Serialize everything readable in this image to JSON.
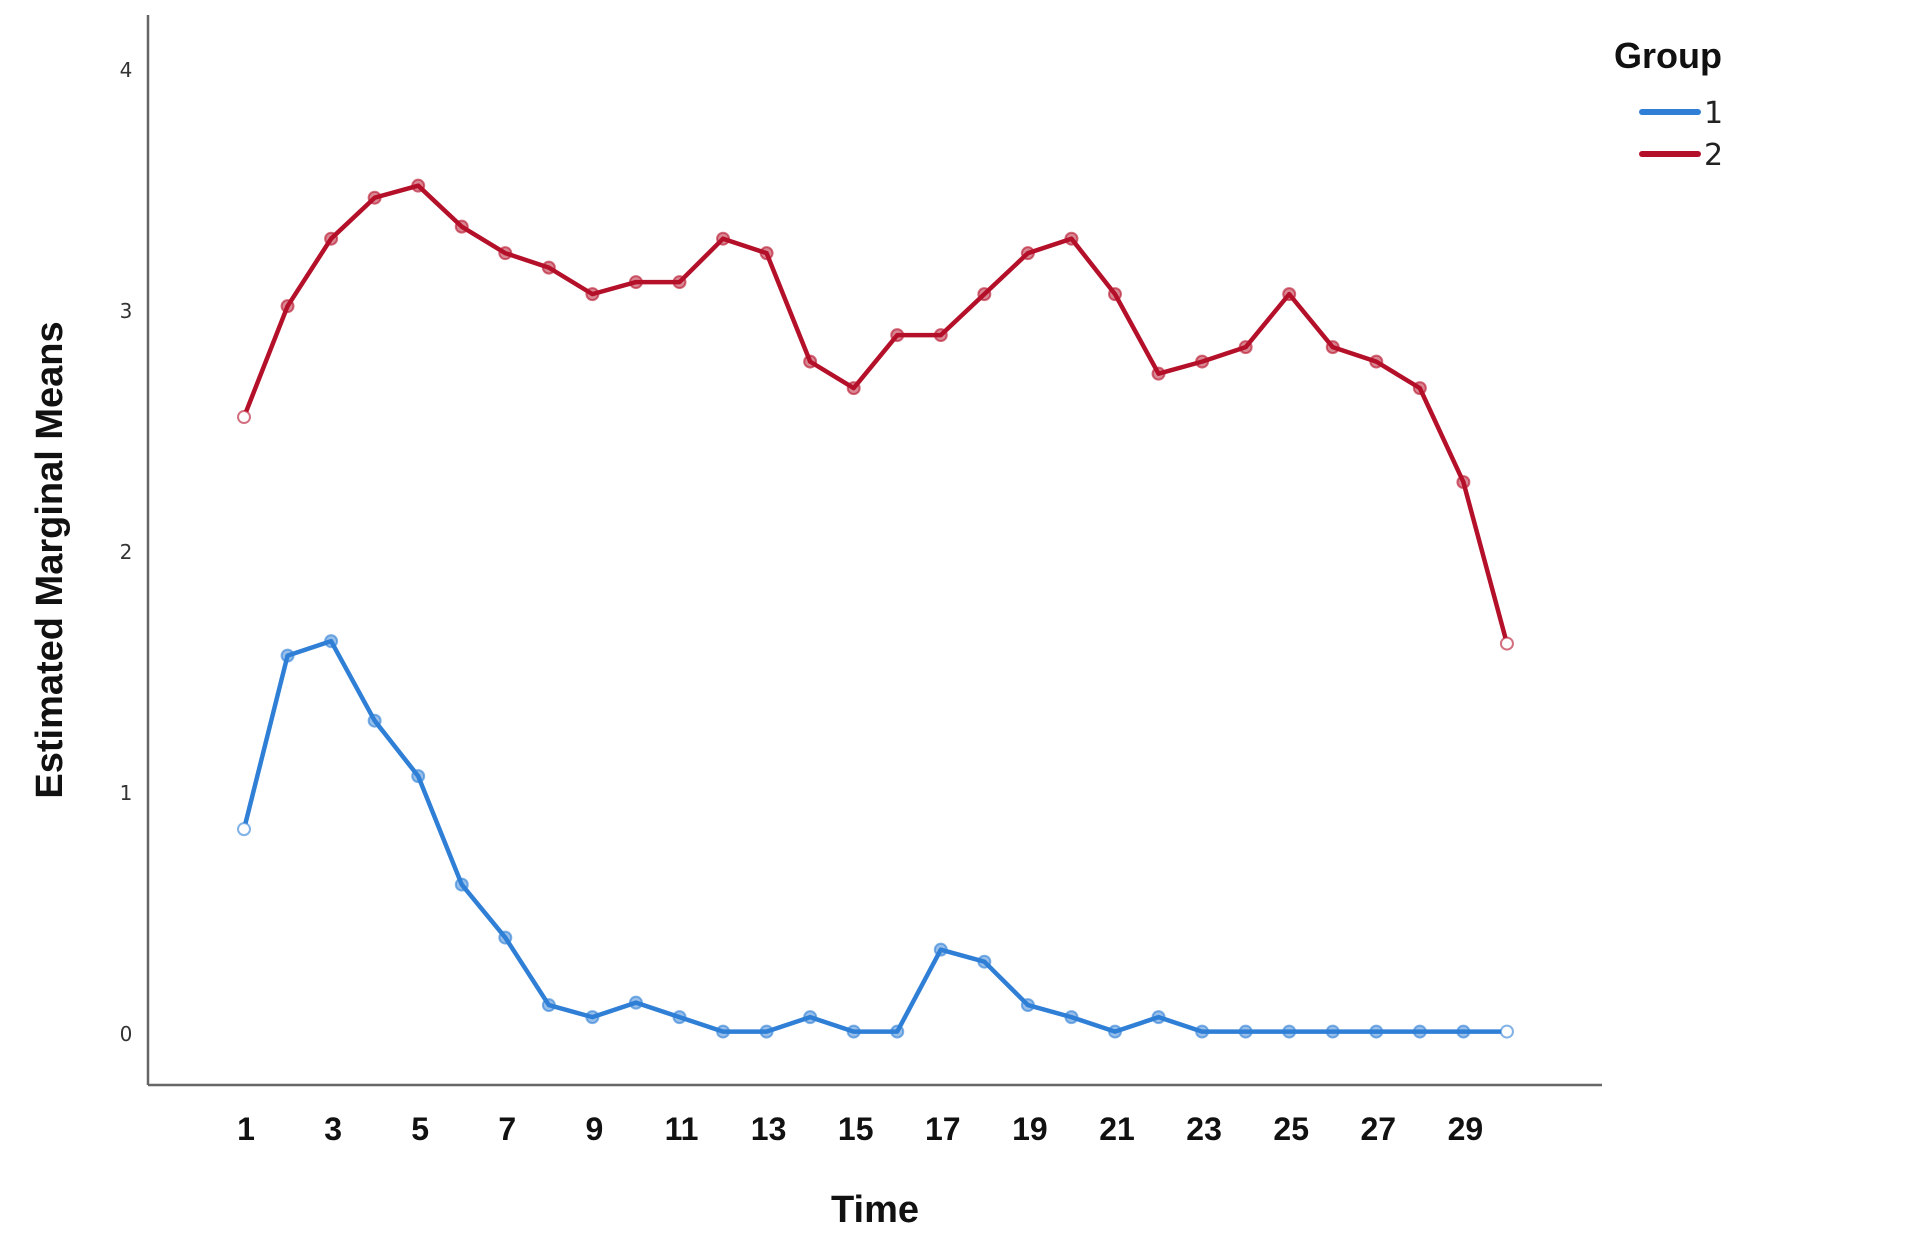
{
  "chart_data": {
    "type": "line",
    "title": "",
    "xlabel": "Time",
    "ylabel": "Estimated Marginal Means",
    "x": [
      1,
      2,
      3,
      4,
      5,
      6,
      7,
      8,
      9,
      10,
      11,
      12,
      13,
      14,
      15,
      16,
      17,
      18,
      19,
      20,
      21,
      22,
      23,
      24,
      25,
      26,
      27,
      28,
      29,
      30
    ],
    "x_tick_labels": [
      "1",
      "3",
      "5",
      "7",
      "9",
      "11",
      "13",
      "15",
      "17",
      "19",
      "21",
      "23",
      "25",
      "27",
      "29"
    ],
    "y_tick_labels": [
      "0",
      "1",
      "2",
      "3",
      "4"
    ],
    "ylim": [
      -0.2,
      4.2
    ],
    "grid": false,
    "legend": {
      "title": "Group",
      "placement": "top-right"
    },
    "series": [
      {
        "name": "1",
        "color": "#2f7fd6",
        "values": [
          0.85,
          1.57,
          1.63,
          1.3,
          1.07,
          0.62,
          0.4,
          0.12,
          0.07,
          0.13,
          0.07,
          0.01,
          0.01,
          0.07,
          0.01,
          0.01,
          0.35,
          0.3,
          0.12,
          0.07,
          0.01,
          0.07,
          0.01,
          0.01,
          0.01,
          0.01,
          0.01,
          0.01,
          0.01,
          0.01
        ]
      },
      {
        "name": "2",
        "color": "#b5102a",
        "values": [
          2.56,
          3.02,
          3.3,
          3.47,
          3.52,
          3.35,
          3.24,
          3.18,
          3.07,
          3.12,
          3.12,
          3.3,
          3.24,
          2.79,
          2.68,
          2.9,
          2.9,
          3.07,
          3.24,
          3.3,
          3.07,
          2.74,
          2.79,
          2.85,
          3.07,
          2.85,
          2.79,
          2.68,
          2.29,
          1.62
        ]
      }
    ]
  }
}
